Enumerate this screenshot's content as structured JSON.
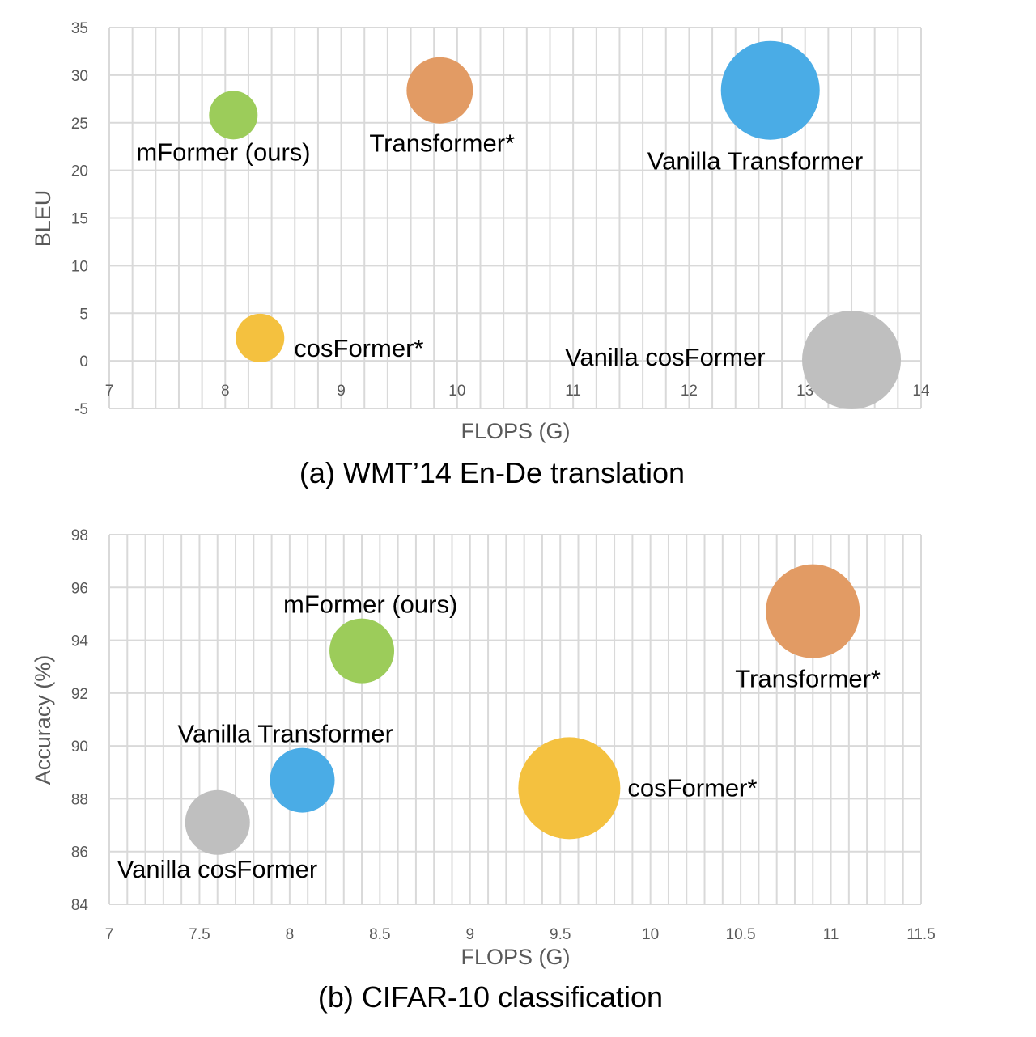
{
  "chart_data": [
    {
      "type": "bubble",
      "caption": "(a) WMT’14 En-De translation",
      "xlabel": "FLOPS (G)",
      "ylabel": "BLEU",
      "xlim": [
        7,
        14
      ],
      "ylim": [
        -5,
        35
      ],
      "x_ticks": [
        "7",
        "8",
        "9",
        "10",
        "11",
        "12",
        "13",
        "14"
      ],
      "y_ticks": [
        "35",
        "30",
        "25",
        "20",
        "15",
        "10",
        "5",
        "0",
        "-5"
      ],
      "grid": true,
      "points": [
        {
          "label": "mFormer (ours)",
          "x": 8.07,
          "y": 25.8,
          "color": "#9ccc5a"
        },
        {
          "label": "Transformer*",
          "x": 9.85,
          "y": 28.4,
          "color": "#e29b64"
        },
        {
          "label": "Vanilla Transformer",
          "x": 12.7,
          "y": 28.4,
          "color": "#4aace6"
        },
        {
          "label": "cosFormer*",
          "x": 8.3,
          "y": 2.4,
          "color": "#f4c13f"
        },
        {
          "label": "Vanilla cosFormer",
          "x": 13.4,
          "y": 0.1,
          "color": "#bfbfbf"
        }
      ]
    },
    {
      "type": "bubble",
      "caption": "(b) CIFAR-10 classification",
      "xlabel": "FLOPS (G)",
      "ylabel": "Accuracy (%)",
      "xlim": [
        7,
        11.5
      ],
      "ylim": [
        84,
        98
      ],
      "x_ticks": [
        "7",
        "7.5",
        "8",
        "8.5",
        "9",
        "9.5",
        "10",
        "10.5",
        "11",
        "11.5"
      ],
      "y_ticks": [
        "98",
        "96",
        "94",
        "92",
        "90",
        "88",
        "86",
        "84"
      ],
      "grid": true,
      "points": [
        {
          "label": "mFormer (ours)",
          "x": 8.4,
          "y": 93.6,
          "color": "#9ccc5a"
        },
        {
          "label": "Transformer*",
          "x": 10.9,
          "y": 95.1,
          "color": "#e29b64"
        },
        {
          "label": "Vanilla Transformer",
          "x": 8.07,
          "y": 88.7,
          "color": "#4aace6"
        },
        {
          "label": "cosFormer*",
          "x": 9.55,
          "y": 88.4,
          "color": "#f4c13f"
        },
        {
          "label": "Vanilla cosFormer",
          "x": 7.6,
          "y": 87.1,
          "color": "#bfbfbf"
        }
      ]
    }
  ]
}
